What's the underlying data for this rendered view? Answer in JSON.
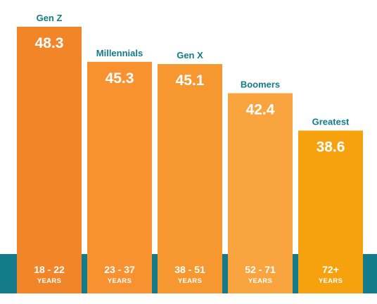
{
  "chart_data": {
    "type": "bar",
    "title": "",
    "xlabel": "",
    "ylabel": "",
    "ylim": [
      0,
      50
    ],
    "grid": false,
    "legend": "none",
    "categories": [
      "Gen Z",
      "Millennials",
      "Gen X",
      "Boomers",
      "Greatest"
    ],
    "values": [
      48.3,
      45.3,
      45.1,
      42.4,
      38.6
    ],
    "value_labels": [
      "48.3",
      "45.3",
      "45.1",
      "42.4",
      "38.6"
    ],
    "age_ranges": [
      "18 - 22",
      "23 - 37",
      "38 - 51",
      "52 - 71",
      "72+"
    ],
    "age_unit": "YEARS",
    "colors": {
      "bars": [
        "#f28527",
        "#f8912f",
        "#f6982f",
        "#f9a43f",
        "#f5a20e"
      ],
      "band": "#137b8a",
      "category_text": "#137b8a"
    }
  }
}
